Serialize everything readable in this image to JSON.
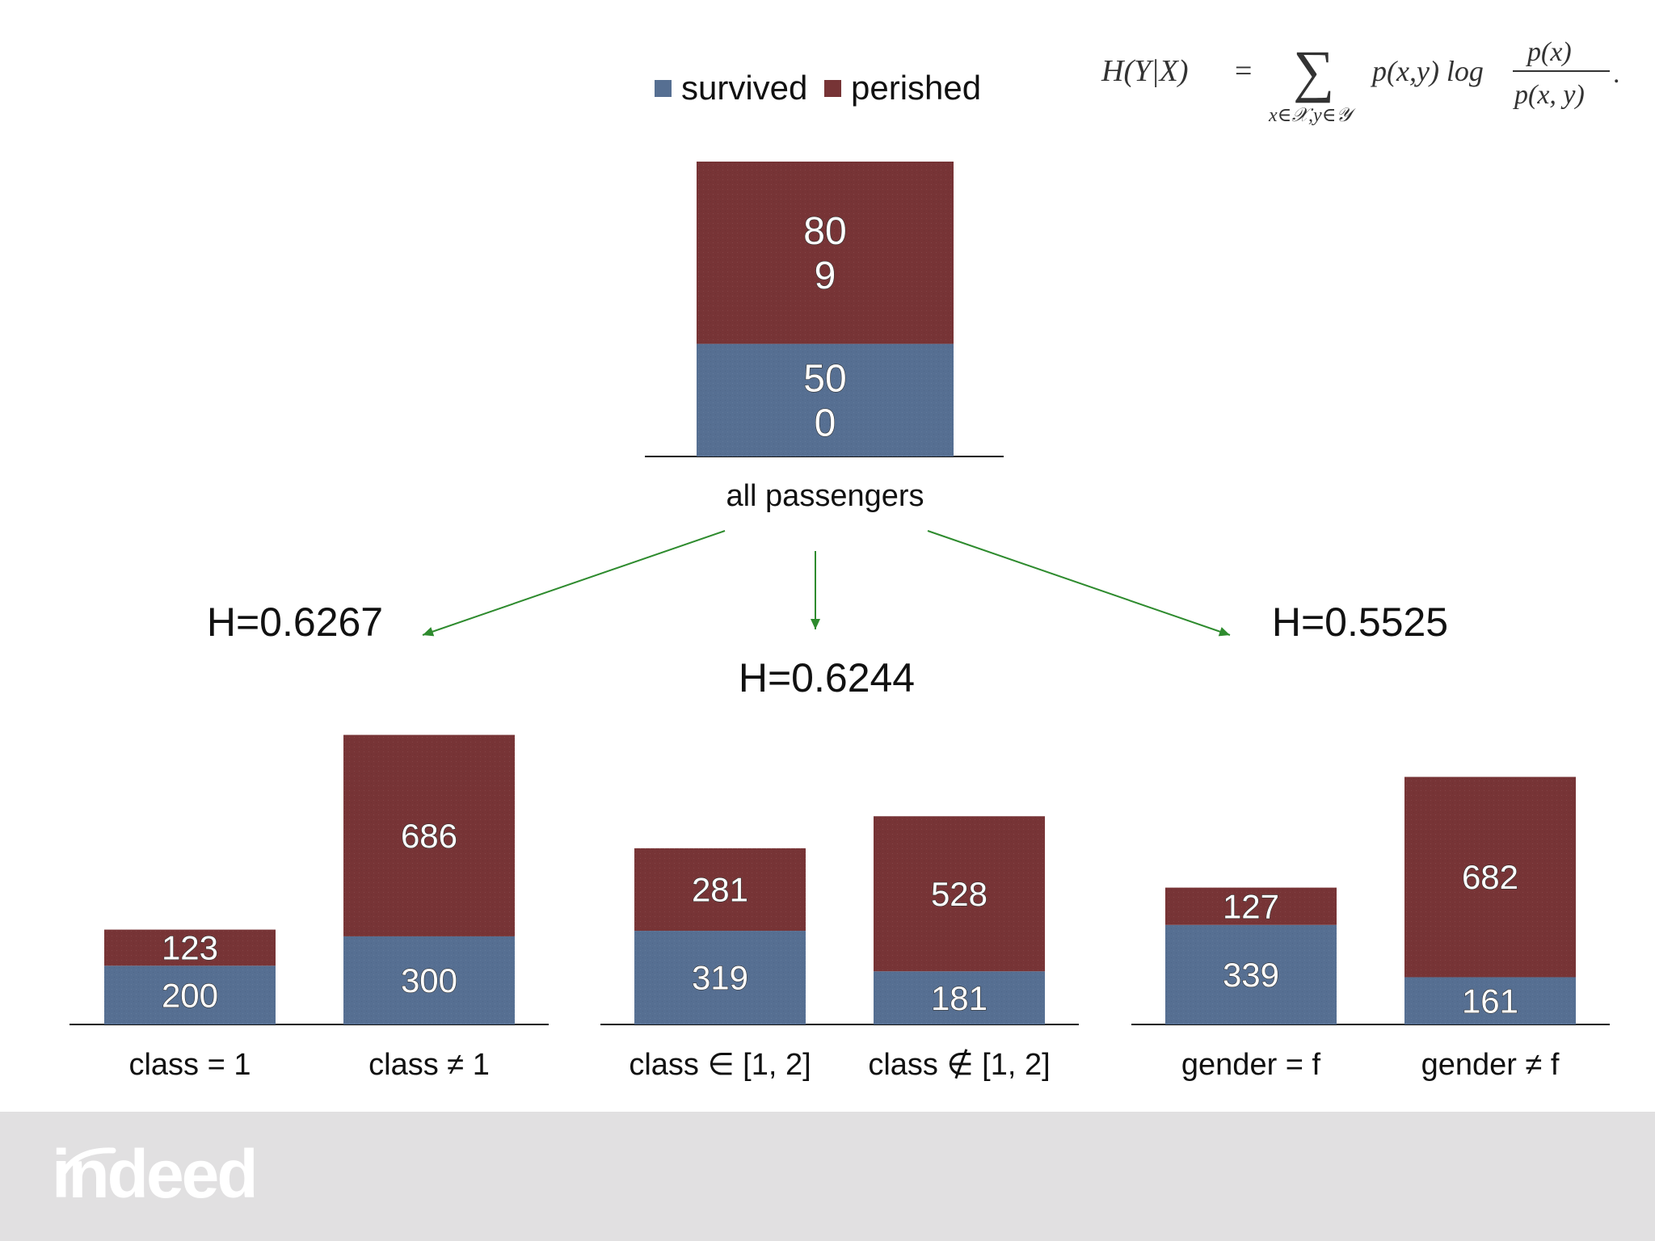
{
  "chart_data": {
    "type": "bar",
    "stacked": true,
    "legend": {
      "placement": "top-center",
      "items": [
        {
          "label": "survived",
          "color": "#566f92"
        },
        {
          "label": "perished",
          "color": "#773436"
        }
      ]
    },
    "formula": {
      "lhs": "H(Y|X)",
      "eq": "=",
      "sum": "∑",
      "sum_sub": "x∈𝒳,y∈𝒴",
      "body": "p(x,y) log",
      "num": "p(x)",
      "den": "p(x, y)",
      "end": "."
    },
    "root": {
      "category": "all passengers",
      "survived": 500,
      "perished": 809,
      "survived_label": "50\n0",
      "perished_label": "80\n9"
    },
    "splits": [
      {
        "entropy": "H=0.6267",
        "bars": [
          {
            "category": "class = 1",
            "survived": 200,
            "perished": 123
          },
          {
            "category": "class ≠ 1",
            "survived": 300,
            "perished": 686
          }
        ]
      },
      {
        "entropy": "H=0.6244",
        "bars": [
          {
            "category": "class ∈ [1, 2]",
            "survived": 319,
            "perished": 281
          },
          {
            "category": "class ∉ [1, 2]",
            "survived": 181,
            "perished": 528
          }
        ]
      },
      {
        "entropy": "H=0.5525",
        "bars": [
          {
            "category": "gender = f",
            "survived": 339,
            "perished": 127
          },
          {
            "category": "gender ≠ f",
            "survived": 161,
            "perished": 682
          }
        ]
      }
    ]
  },
  "colors": {
    "survived": "#566f92",
    "perished": "#773436",
    "arrow": "#2e8b2e",
    "footer": "#e1e0e1"
  },
  "footer": {
    "logo_text": "indeed"
  }
}
